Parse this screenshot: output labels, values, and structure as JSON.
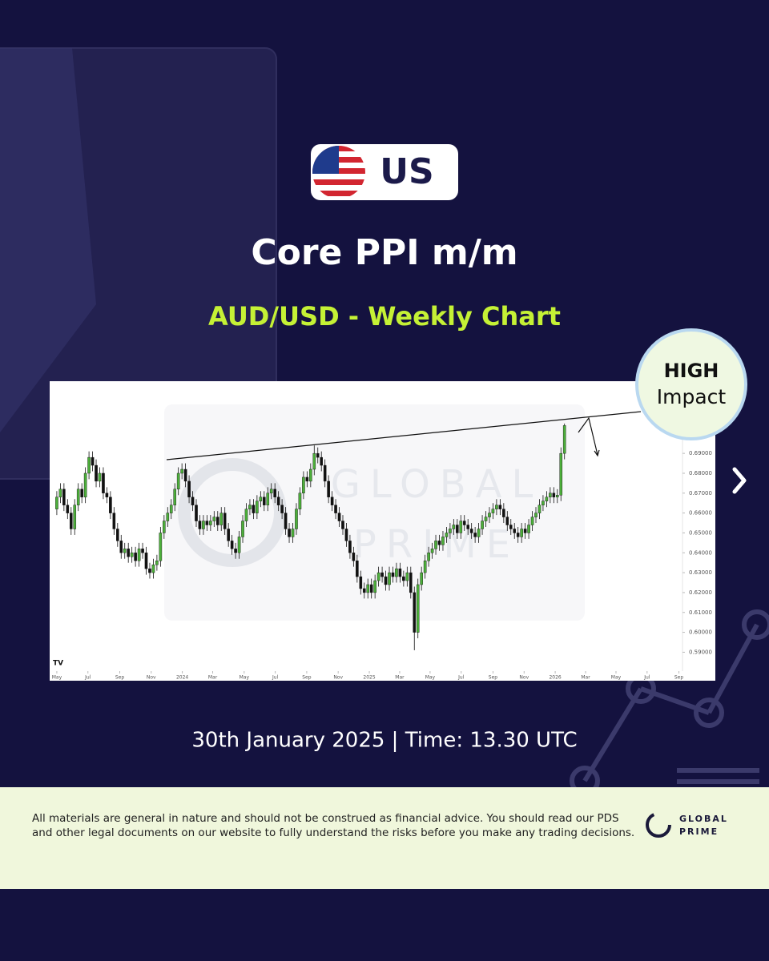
{
  "badge": "US",
  "title": "Core PPI m/m",
  "subtitle": "AUD/USD - Weekly Chart",
  "impact": {
    "level": "HIGH",
    "label": "Impact"
  },
  "chart_data": {
    "type": "candlestick",
    "up_color": "#4caf3a",
    "down_color": "#111111",
    "open": [
      0.662,
      0.668,
      0.672,
      0.664,
      0.66,
      0.652,
      0.664,
      0.672,
      0.668,
      0.68,
      0.688,
      0.684,
      0.676,
      0.68,
      0.67,
      0.668,
      0.66,
      0.652,
      0.646,
      0.64,
      0.642,
      0.638,
      0.64,
      0.636,
      0.642,
      0.64,
      0.632,
      0.63,
      0.634,
      0.636,
      0.65,
      0.656,
      0.66,
      0.664,
      0.672,
      0.68,
      0.682,
      0.676,
      0.668,
      0.664,
      0.656,
      0.652,
      0.656,
      0.654,
      0.656,
      0.658,
      0.654,
      0.66,
      0.652,
      0.646,
      0.642,
      0.64,
      0.648,
      0.656,
      0.662,
      0.664,
      0.66,
      0.666,
      0.668,
      0.664,
      0.67,
      0.672,
      0.668,
      0.664,
      0.66,
      0.652,
      0.648,
      0.652,
      0.662,
      0.67,
      0.678,
      0.676,
      0.682,
      0.69,
      0.688,
      0.684,
      0.676,
      0.668,
      0.664,
      0.66,
      0.656,
      0.652,
      0.646,
      0.64,
      0.636,
      0.628,
      0.622,
      0.62,
      0.624,
      0.62,
      0.626,
      0.63,
      0.628,
      0.624,
      0.63,
      0.628,
      0.632,
      0.628,
      0.626,
      0.63,
      0.62,
      0.6,
      0.624,
      0.63,
      0.636,
      0.64,
      0.642,
      0.646,
      0.644,
      0.648,
      0.65,
      0.652,
      0.654,
      0.65,
      0.656,
      0.654,
      0.652,
      0.65,
      0.648,
      0.652,
      0.656,
      0.658,
      0.66,
      0.662,
      0.664,
      0.662,
      0.658,
      0.654,
      0.652,
      0.65,
      0.648,
      0.652,
      0.65,
      0.654,
      0.658,
      0.66,
      0.664,
      0.666,
      0.668,
      0.67,
      0.668,
      0.669,
      0.69
    ],
    "high": [
      0.671,
      0.675,
      0.675,
      0.667,
      0.663,
      0.667,
      0.675,
      0.675,
      0.683,
      0.691,
      0.691,
      0.687,
      0.683,
      0.683,
      0.673,
      0.671,
      0.663,
      0.655,
      0.649,
      0.645,
      0.645,
      0.643,
      0.643,
      0.645,
      0.645,
      0.643,
      0.635,
      0.637,
      0.639,
      0.653,
      0.659,
      0.663,
      0.667,
      0.675,
      0.683,
      0.685,
      0.685,
      0.679,
      0.671,
      0.667,
      0.659,
      0.659,
      0.659,
      0.659,
      0.661,
      0.661,
      0.663,
      0.663,
      0.655,
      0.649,
      0.645,
      0.651,
      0.659,
      0.665,
      0.667,
      0.667,
      0.669,
      0.671,
      0.671,
      0.673,
      0.675,
      0.675,
      0.671,
      0.667,
      0.663,
      0.655,
      0.655,
      0.665,
      0.673,
      0.681,
      0.681,
      0.685,
      0.694,
      0.693,
      0.691,
      0.687,
      0.679,
      0.671,
      0.667,
      0.663,
      0.659,
      0.655,
      0.649,
      0.643,
      0.639,
      0.631,
      0.625,
      0.627,
      0.627,
      0.629,
      0.633,
      0.633,
      0.631,
      0.633,
      0.633,
      0.635,
      0.635,
      0.631,
      0.633,
      0.633,
      0.623,
      0.627,
      0.633,
      0.639,
      0.643,
      0.645,
      0.649,
      0.649,
      0.651,
      0.653,
      0.655,
      0.657,
      0.657,
      0.659,
      0.659,
      0.657,
      0.655,
      0.653,
      0.655,
      0.659,
      0.661,
      0.663,
      0.665,
      0.667,
      0.667,
      0.665,
      0.661,
      0.657,
      0.655,
      0.653,
      0.655,
      0.655,
      0.657,
      0.661,
      0.663,
      0.667,
      0.669,
      0.671,
      0.673,
      0.673,
      0.672,
      0.693,
      0.705
    ],
    "low": [
      0.659,
      0.665,
      0.661,
      0.657,
      0.649,
      0.649,
      0.661,
      0.665,
      0.665,
      0.677,
      0.681,
      0.673,
      0.673,
      0.667,
      0.665,
      0.657,
      0.649,
      0.643,
      0.637,
      0.637,
      0.635,
      0.635,
      0.633,
      0.633,
      0.637,
      0.629,
      0.627,
      0.627,
      0.631,
      0.633,
      0.647,
      0.653,
      0.657,
      0.661,
      0.669,
      0.677,
      0.673,
      0.665,
      0.661,
      0.653,
      0.649,
      0.649,
      0.651,
      0.651,
      0.653,
      0.651,
      0.651,
      0.649,
      0.643,
      0.639,
      0.637,
      0.637,
      0.645,
      0.653,
      0.659,
      0.657,
      0.657,
      0.663,
      0.661,
      0.661,
      0.667,
      0.665,
      0.661,
      0.657,
      0.649,
      0.645,
      0.645,
      0.649,
      0.659,
      0.667,
      0.673,
      0.673,
      0.679,
      0.685,
      0.681,
      0.673,
      0.665,
      0.661,
      0.657,
      0.653,
      0.649,
      0.643,
      0.637,
      0.633,
      0.625,
      0.619,
      0.617,
      0.617,
      0.617,
      0.617,
      0.623,
      0.625,
      0.621,
      0.621,
      0.625,
      0.625,
      0.625,
      0.623,
      0.623,
      0.617,
      0.591,
      0.597,
      0.621,
      0.627,
      0.633,
      0.637,
      0.639,
      0.641,
      0.641,
      0.645,
      0.647,
      0.649,
      0.647,
      0.647,
      0.651,
      0.649,
      0.647,
      0.645,
      0.645,
      0.649,
      0.653,
      0.655,
      0.657,
      0.659,
      0.659,
      0.655,
      0.651,
      0.649,
      0.647,
      0.645,
      0.645,
      0.647,
      0.647,
      0.651,
      0.655,
      0.657,
      0.661,
      0.663,
      0.665,
      0.665,
      0.665,
      0.666,
      0.687
    ],
    "close": [
      0.668,
      0.672,
      0.664,
      0.66,
      0.652,
      0.664,
      0.672,
      0.668,
      0.68,
      0.688,
      0.684,
      0.676,
      0.68,
      0.67,
      0.668,
      0.66,
      0.652,
      0.646,
      0.64,
      0.642,
      0.638,
      0.64,
      0.636,
      0.642,
      0.64,
      0.632,
      0.63,
      0.634,
      0.636,
      0.65,
      0.656,
      0.66,
      0.664,
      0.672,
      0.68,
      0.682,
      0.676,
      0.668,
      0.664,
      0.656,
      0.652,
      0.656,
      0.654,
      0.656,
      0.658,
      0.654,
      0.66,
      0.652,
      0.646,
      0.642,
      0.64,
      0.648,
      0.656,
      0.662,
      0.664,
      0.66,
      0.666,
      0.668,
      0.664,
      0.67,
      0.672,
      0.668,
      0.664,
      0.66,
      0.652,
      0.648,
      0.652,
      0.662,
      0.67,
      0.678,
      0.676,
      0.682,
      0.69,
      0.688,
      0.684,
      0.676,
      0.668,
      0.664,
      0.66,
      0.656,
      0.652,
      0.646,
      0.64,
      0.636,
      0.628,
      0.622,
      0.62,
      0.624,
      0.62,
      0.626,
      0.63,
      0.628,
      0.624,
      0.63,
      0.628,
      0.632,
      0.628,
      0.626,
      0.63,
      0.62,
      0.6,
      0.624,
      0.63,
      0.636,
      0.64,
      0.642,
      0.646,
      0.644,
      0.648,
      0.65,
      0.652,
      0.654,
      0.65,
      0.656,
      0.654,
      0.652,
      0.65,
      0.648,
      0.652,
      0.656,
      0.658,
      0.66,
      0.662,
      0.664,
      0.662,
      0.658,
      0.654,
      0.652,
      0.65,
      0.648,
      0.652,
      0.65,
      0.654,
      0.658,
      0.66,
      0.664,
      0.666,
      0.668,
      0.67,
      0.668,
      0.669,
      0.69,
      0.704
    ],
    "xlim": [
      -2,
      175
    ],
    "xticks": [
      {
        "value": 0,
        "label": "May"
      },
      {
        "value": 8.7,
        "label": "Jul"
      },
      {
        "value": 17.6,
        "label": "Sep"
      },
      {
        "value": 26.4,
        "label": "Nov"
      },
      {
        "value": 35.1,
        "label": "2024"
      },
      {
        "value": 43.6,
        "label": "Mar"
      },
      {
        "value": 52.4,
        "label": "May"
      },
      {
        "value": 61.1,
        "label": "Jul"
      },
      {
        "value": 69.9,
        "label": "Sep"
      },
      {
        "value": 78.7,
        "label": "Nov"
      },
      {
        "value": 87.4,
        "label": "2025"
      },
      {
        "value": 95.9,
        "label": "Mar"
      },
      {
        "value": 104.4,
        "label": "May"
      },
      {
        "value": 113.1,
        "label": "Jul"
      },
      {
        "value": 122,
        "label": "Sep"
      },
      {
        "value": 130.7,
        "label": "Nov"
      },
      {
        "value": 139.4,
        "label": "2026"
      },
      {
        "value": 147.9,
        "label": "Mar"
      },
      {
        "value": 156.4,
        "label": "May"
      },
      {
        "value": 165.1,
        "label": "Jul"
      },
      {
        "value": 174,
        "label": "Sep"
      }
    ],
    "ylim": [
      0.5805,
      0.7255
    ],
    "yticks": [
      {
        "value": 0.59,
        "label": "0.59000"
      },
      {
        "value": 0.6,
        "label": "0.60000"
      },
      {
        "value": 0.61,
        "label": "0.61000"
      },
      {
        "value": 0.62,
        "label": "0.62000"
      },
      {
        "value": 0.63,
        "label": "0.63000"
      },
      {
        "value": 0.64,
        "label": "0.64000"
      },
      {
        "value": 0.65,
        "label": "0.65000"
      },
      {
        "value": 0.66,
        "label": "0.66000"
      },
      {
        "value": 0.67,
        "label": "0.67000"
      },
      {
        "value": 0.68,
        "label": "0.68000"
      },
      {
        "value": 0.69,
        "label": "0.69000"
      }
    ],
    "watermark": [
      "GLOBAL",
      "PRIME"
    ]
  },
  "date_line": "30th January 2025 | Time: 13.30 UTC",
  "disclaimer": [
    "All materials are general in nature and should not be construed as financial advice. You should read our PDS",
    "and other legal documents on our website to fully understand the risks before you make any trading decisions."
  ],
  "logo": [
    "GLOBAL",
    "PRIME"
  ]
}
